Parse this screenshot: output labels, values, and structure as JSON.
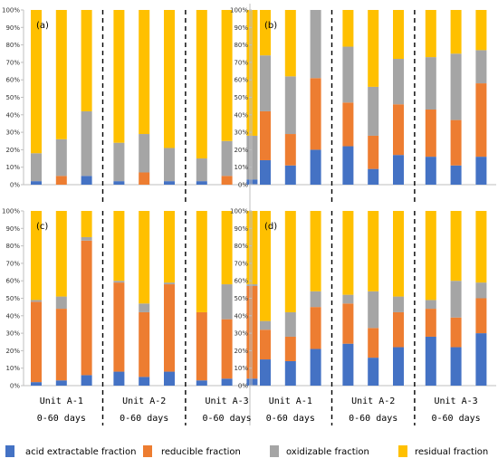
{
  "colors": {
    "acid": "#4472c4",
    "reducible": "#ed7d31",
    "oxidizable": "#a5a5a5",
    "residual": "#ffc000"
  },
  "chart_data": {
    "type": "stacked-bar",
    "ylim": [
      0,
      100
    ],
    "yticks": [
      "0%",
      "10%",
      "20%",
      "30%",
      "40%",
      "50%",
      "60%",
      "70%",
      "80%",
      "90%",
      "100%"
    ],
    "grid": false,
    "legend_position": "bottom",
    "series_names": [
      "acid extractable fraction",
      "reducible fraction",
      "oxidizable fraction",
      "residual fraction"
    ],
    "unit_labels": [
      {
        "unit": "Unit A-1",
        "days": "0-60 days"
      },
      {
        "unit": "Unit A-2",
        "days": "0-60 days"
      },
      {
        "unit": "Unit A-3",
        "days": "0-60 days"
      }
    ],
    "panels": [
      {
        "label": "(a)",
        "bars": [
          [
            2,
            0,
            16,
            82
          ],
          [
            0,
            5,
            21,
            74
          ],
          [
            5,
            0,
            37,
            58
          ],
          [
            2,
            0,
            22,
            76
          ],
          [
            0,
            7,
            22,
            71
          ],
          [
            2,
            0,
            19,
            79
          ],
          [
            2,
            0,
            13,
            85
          ],
          [
            0,
            5,
            20,
            75
          ],
          [
            3,
            0,
            25,
            72
          ]
        ]
      },
      {
        "label": "(b)",
        "bars": [
          [
            14,
            28,
            32,
            26
          ],
          [
            11,
            18,
            33,
            38
          ],
          [
            20,
            41,
            39,
            0
          ],
          [
            22,
            25,
            32,
            21
          ],
          [
            9,
            19,
            28,
            44
          ],
          [
            17,
            29,
            26,
            28
          ],
          [
            16,
            27,
            30,
            27
          ],
          [
            11,
            26,
            38,
            25
          ],
          [
            16,
            42,
            19,
            23
          ]
        ]
      },
      {
        "label": "(c)",
        "bars": [
          [
            2,
            46,
            1,
            51
          ],
          [
            3,
            41,
            7,
            49
          ],
          [
            6,
            77,
            2,
            15
          ],
          [
            8,
            51,
            1,
            40
          ],
          [
            5,
            37,
            5,
            53
          ],
          [
            8,
            50,
            1,
            41
          ],
          [
            3,
            39,
            0,
            58
          ],
          [
            4,
            34,
            20,
            42
          ],
          [
            4,
            53,
            1,
            42
          ]
        ]
      },
      {
        "label": "(d)",
        "bars": [
          [
            15,
            17,
            5,
            63
          ],
          [
            14,
            14,
            14,
            58
          ],
          [
            21,
            24,
            9,
            46
          ],
          [
            24,
            23,
            5,
            48
          ],
          [
            16,
            17,
            21,
            46
          ],
          [
            22,
            20,
            9,
            49
          ],
          [
            28,
            16,
            5,
            51
          ],
          [
            22,
            17,
            21,
            40
          ],
          [
            30,
            20,
            9,
            41
          ]
        ]
      }
    ]
  }
}
